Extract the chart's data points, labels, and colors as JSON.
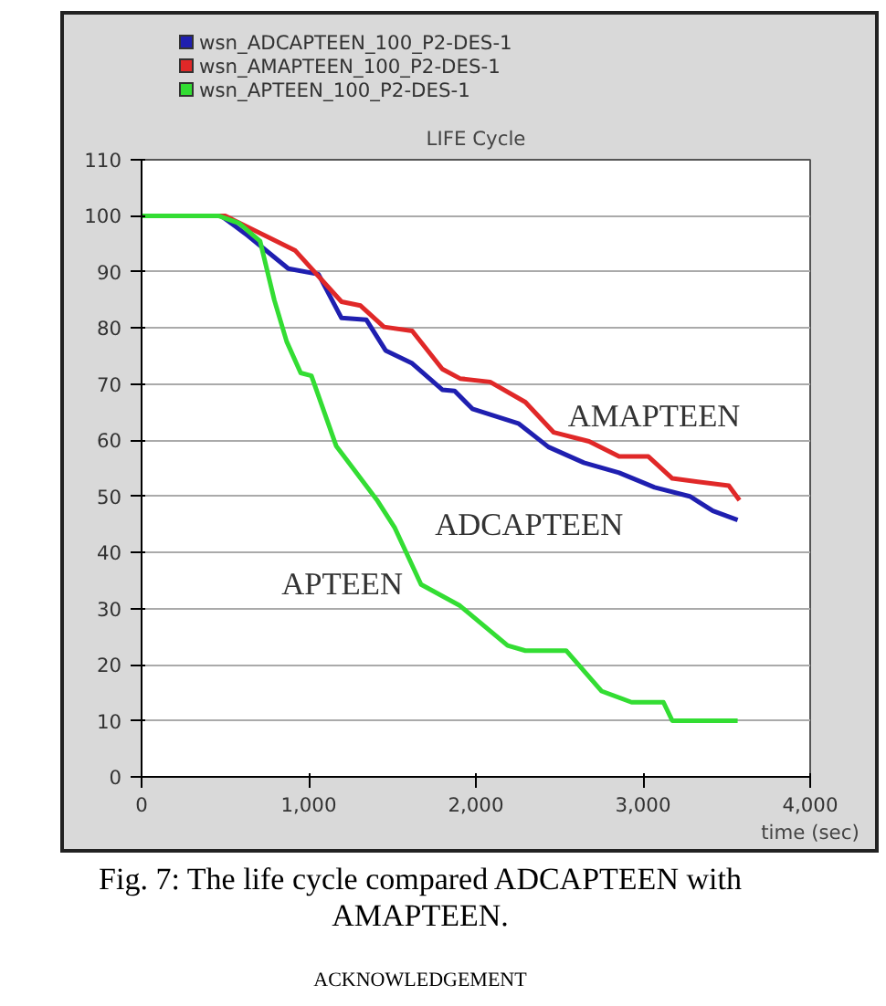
{
  "chart_data": {
    "type": "line",
    "title": "LIFE Cycle",
    "xlabel": "time (sec)",
    "xlim": [
      0,
      4000
    ],
    "xticks": [
      0,
      {
        "value": 1000,
        "label": "1,000"
      },
      {
        "value": 2000,
        "label": "2,000"
      },
      {
        "value": 3000,
        "label": "3,000"
      },
      {
        "value": 4000,
        "label": "4,000"
      }
    ],
    "ylim": [
      0,
      110
    ],
    "yticks": [
      0,
      10,
      20,
      30,
      40,
      50,
      60,
      70,
      80,
      90,
      100,
      110
    ],
    "grid": "y",
    "legend": "top left",
    "marker": "none",
    "line_style": "solid",
    "series": [
      {
        "name": "wsn_ADCAPTEEN_100_P2-DES-1",
        "color": "#1f1fb0",
        "x": [
          0,
          476,
          635,
          878,
          1058,
          1196,
          1344,
          1460,
          1619,
          1799,
          1873,
          1979,
          2254,
          2434,
          2646,
          2857,
          3069,
          3280,
          3418,
          3566
        ],
        "values": [
          100,
          100,
          96.5,
          90.6,
          89.6,
          81.8,
          81.5,
          76,
          73.7,
          69,
          68.8,
          65.6,
          63,
          58.8,
          56,
          54.2,
          51.6,
          50,
          47.4,
          45.8
        ]
      },
      {
        "name": "wsn_AMAPTEEN_100_P2-DES-1",
        "color": "#e02828",
        "x": [
          0,
          500,
          920,
          1196,
          1310,
          1450,
          1619,
          1799,
          1905,
          2085,
          2296,
          2466,
          2677,
          2857,
          3032,
          3175,
          3513,
          3577
        ],
        "values": [
          100,
          100,
          93.8,
          84.7,
          84,
          80.2,
          79.5,
          72.7,
          71,
          70.4,
          66.8,
          61.4,
          59.8,
          57.1,
          57.1,
          53.2,
          51.9,
          49.3
        ]
      },
      {
        "name": "wsn_APTEEN_100_P2-DES-1",
        "color": "#33dd33",
        "x": [
          0,
          460,
          582,
          709,
          794,
          868,
          952,
          1016,
          1164,
          1407,
          1513,
          1672,
          1905,
          2190,
          2296,
          2540,
          2751,
          2931,
          3122,
          3175,
          3566
        ],
        "values": [
          100,
          100,
          98.7,
          95.5,
          85,
          77.6,
          72,
          71.5,
          59,
          49.4,
          44.5,
          34.3,
          30.5,
          23.4,
          22.5,
          22.5,
          15.3,
          13.3,
          13.3,
          10,
          10
        ]
      }
    ],
    "annotations": [
      {
        "text": "AMAPTEEN",
        "x": 3175,
        "y": 53.2
      },
      {
        "text": "ADCAPTEEN",
        "x": 2646,
        "y": 56
      },
      {
        "text": "APTEEN",
        "x": 1672,
        "y": 34.3
      },
      "Fig. 7: The life cycle compared ADCAPTEEN with AMAPTEEN.",
      "ACKNOWLEDGEMENT"
    ]
  }
}
